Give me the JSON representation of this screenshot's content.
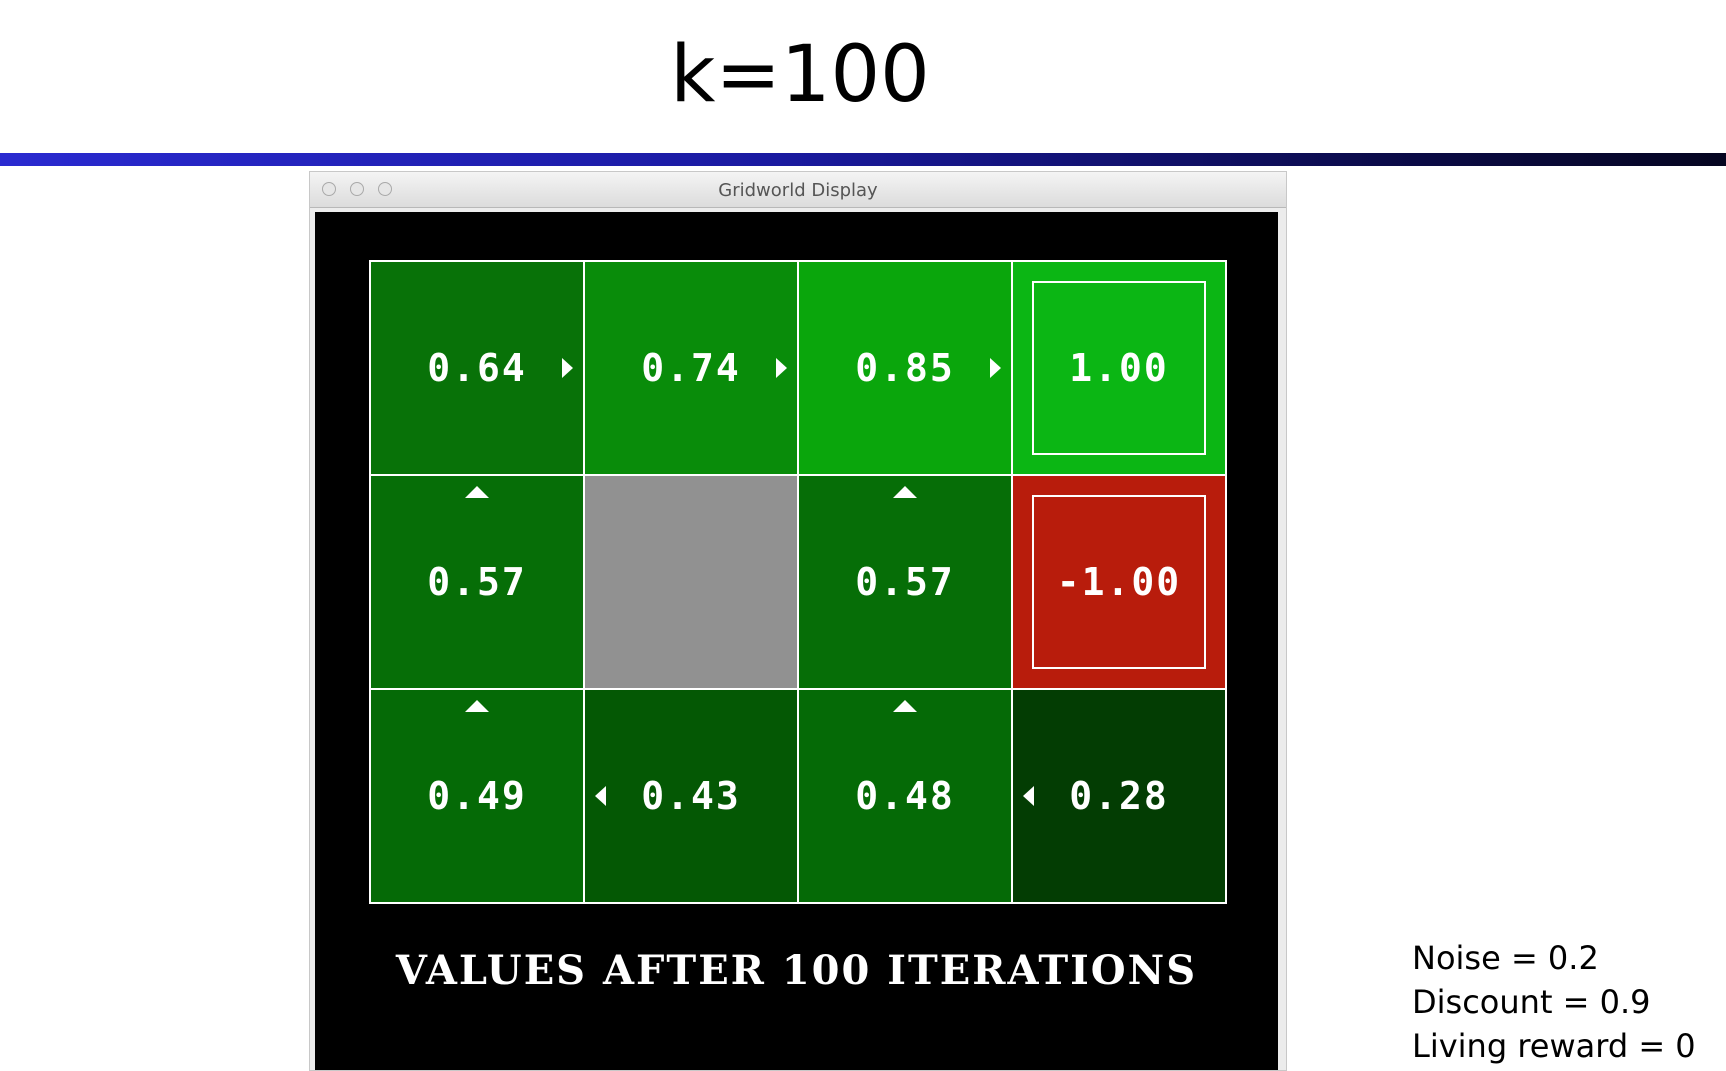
{
  "slide": {
    "title": "k=100"
  },
  "window": {
    "title": "Gridworld Display"
  },
  "grid": {
    "caption": "VALUES AFTER 100 ITERATIONS",
    "rows": [
      [
        {
          "value": "0.64",
          "policy": "right",
          "color": "#087208"
        },
        {
          "value": "0.74",
          "policy": "right",
          "color": "#098c0a"
        },
        {
          "value": "0.85",
          "policy": "right",
          "color": "#0aa60c"
        },
        {
          "value": "1.00",
          "terminal": true,
          "color": "#0bb614"
        }
      ],
      [
        {
          "value": "0.57",
          "policy": "up",
          "color": "#066e07"
        },
        {
          "wall": true,
          "color": "#919191"
        },
        {
          "value": "0.57",
          "policy": "up",
          "color": "#066e07"
        },
        {
          "value": "-1.00",
          "terminal": true,
          "color": "#b81c0c"
        }
      ],
      [
        {
          "value": "0.49",
          "policy": "up",
          "color": "#056a06"
        },
        {
          "value": "0.43",
          "policy": "left",
          "color": "#045804"
        },
        {
          "value": "0.48",
          "policy": "up",
          "color": "#056a06"
        },
        {
          "value": "0.28",
          "policy": "left",
          "color": "#033d03"
        }
      ]
    ]
  },
  "params": {
    "noise": "Noise = 0.2",
    "discount": "Discount = 0.9",
    "living_reward": "Living reward = 0"
  }
}
